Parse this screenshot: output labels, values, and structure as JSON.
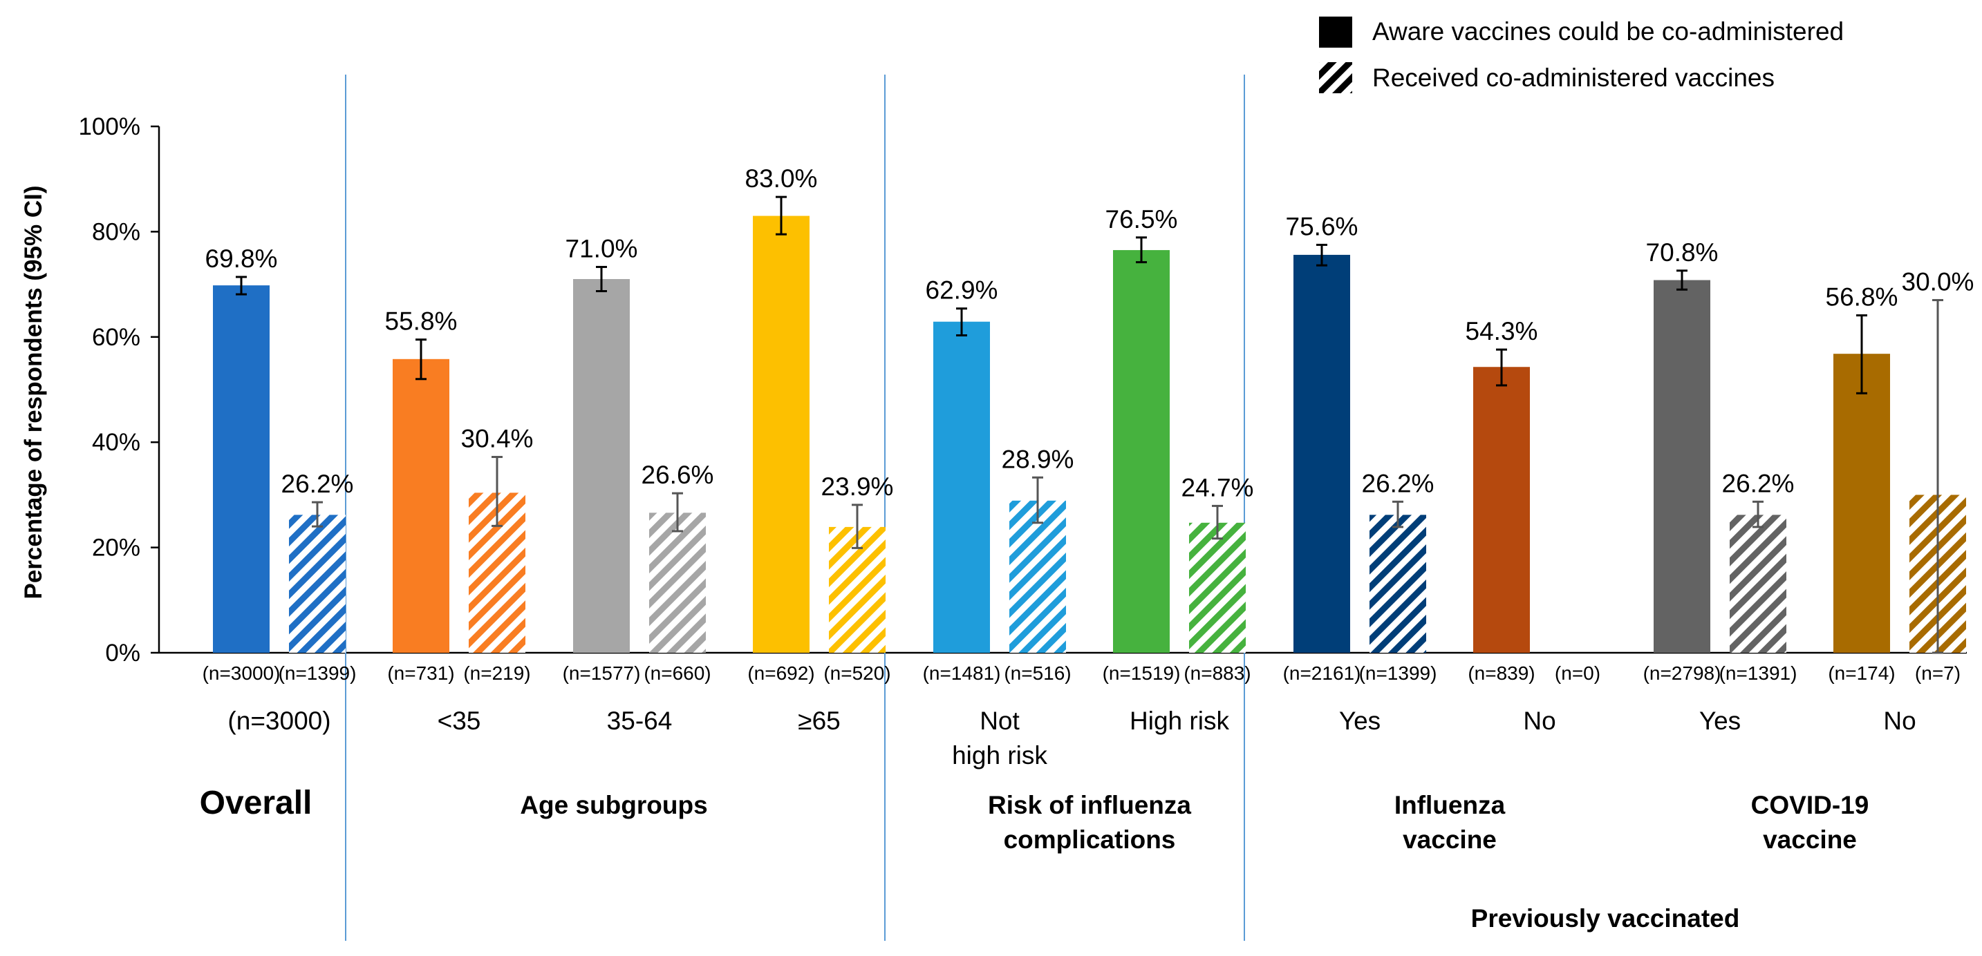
{
  "chart_data": {
    "type": "bar",
    "ylabel": "Percentage of respondents (95% CI)",
    "ylim": [
      0,
      100
    ],
    "yticks": [
      "0%",
      "20%",
      "40%",
      "60%",
      "80%",
      "100%"
    ],
    "grid": false,
    "legend": {
      "position": "top-right",
      "entries": [
        {
          "label": "Aware vaccines could be co-administered",
          "style": "solid"
        },
        {
          "label": "Received co-administered vaccines",
          "style": "hatched"
        }
      ]
    },
    "groups": [
      {
        "title": [
          "Overall"
        ],
        "big": true,
        "categories": [
          {
            "label": [
              "(n=3000)"
            ],
            "color": "#1f6fc5",
            "aware": {
              "value": 69.8,
              "label": "69.8%",
              "ci": [
                68.1,
                71.4
              ],
              "n": "(n=3000)"
            },
            "received": {
              "value": 26.2,
              "label": "26.2%",
              "ci": [
                24.0,
                28.6
              ],
              "n": "(n=1399)"
            }
          }
        ]
      },
      {
        "title": [
          "Age subgroups"
        ],
        "categories": [
          {
            "label": [
              "<35"
            ],
            "color": "#f97d22",
            "aware": {
              "value": 55.8,
              "label": "55.8%",
              "ci": [
                52.0,
                59.5
              ],
              "n": "(n=731)"
            },
            "received": {
              "value": 30.4,
              "label": "30.4%",
              "ci": [
                24.1,
                37.2
              ],
              "n": "(n=219)"
            }
          },
          {
            "label": [
              "35-64"
            ],
            "color": "#a6a6a6",
            "aware": {
              "value": 71.0,
              "label": "71.0%",
              "ci": [
                68.7,
                73.3
              ],
              "n": "(n=1577)"
            },
            "received": {
              "value": 26.6,
              "label": "26.6%",
              "ci": [
                23.1,
                30.3
              ],
              "n": "(n=660)"
            }
          },
          {
            "label": [
              "≥65"
            ],
            "color": "#fdc000",
            "aware": {
              "value": 83.0,
              "label": "83.0%",
              "ci": [
                79.5,
                86.6
              ],
              "n": "(n=692)"
            },
            "received": {
              "value": 23.9,
              "label": "23.9%",
              "ci": [
                19.9,
                28.1
              ],
              "n": "(n=520)"
            }
          }
        ]
      },
      {
        "title": [
          "Risk of influenza",
          "complications"
        ],
        "categories": [
          {
            "label": [
              "Not",
              "high risk"
            ],
            "color": "#1f9ddb",
            "aware": {
              "value": 62.9,
              "label": "62.9%",
              "ci": [
                60.3,
                65.4
              ],
              "n": "(n=1481)"
            },
            "received": {
              "value": 28.9,
              "label": "28.9%",
              "ci": [
                24.7,
                33.3
              ],
              "n": "(n=516)"
            }
          },
          {
            "label": [
              "High risk"
            ],
            "color": "#46b23e",
            "aware": {
              "value": 76.5,
              "label": "76.5%",
              "ci": [
                74.2,
                78.9
              ],
              "n": "(n=1519)"
            },
            "received": {
              "value": 24.7,
              "label": "24.7%",
              "ci": [
                21.7,
                27.9
              ],
              "n": "(n=883)"
            }
          }
        ]
      },
      {
        "title": [
          "Influenza",
          "vaccine"
        ],
        "categories": [
          {
            "label": [
              "Yes"
            ],
            "color": "#003e78",
            "aware": {
              "value": 75.6,
              "label": "75.6%",
              "ci": [
                73.6,
                77.5
              ],
              "n": "(n=2161)"
            },
            "received": {
              "value": 26.2,
              "label": "26.2%",
              "ci": [
                23.9,
                28.7
              ],
              "n": "(n=1399)"
            }
          },
          {
            "label": [
              "No"
            ],
            "color": "#b5490e",
            "aware": {
              "value": 54.3,
              "label": "54.3%",
              "ci": [
                50.8,
                57.6
              ],
              "n": "(n=839)"
            },
            "received": {
              "value": null,
              "label": "",
              "ci": null,
              "n": "(n=0)"
            }
          }
        ]
      },
      {
        "title": [
          "COVID-19",
          "vaccine"
        ],
        "categories": [
          {
            "label": [
              "Yes"
            ],
            "color": "#636363",
            "aware": {
              "value": 70.8,
              "label": "70.8%",
              "ci": [
                69.0,
                72.6
              ],
              "n": "(n=2798)"
            },
            "received": {
              "value": 26.2,
              "label": "26.2%",
              "ci": [
                23.9,
                28.7
              ],
              "n": "(n=1391)"
            }
          },
          {
            "label": [
              "No"
            ],
            "color": "#a86b00",
            "aware": {
              "value": 56.8,
              "label": "56.8%",
              "ci": [
                49.3,
                64.1
              ],
              "n": "(n=174)"
            },
            "received": {
              "value": 30.0,
              "label": "30.0%",
              "ci": [
                0.0,
                67.0
              ],
              "n": "(n=7)"
            }
          }
        ]
      }
    ],
    "super_title": "Previously vaccinated"
  }
}
